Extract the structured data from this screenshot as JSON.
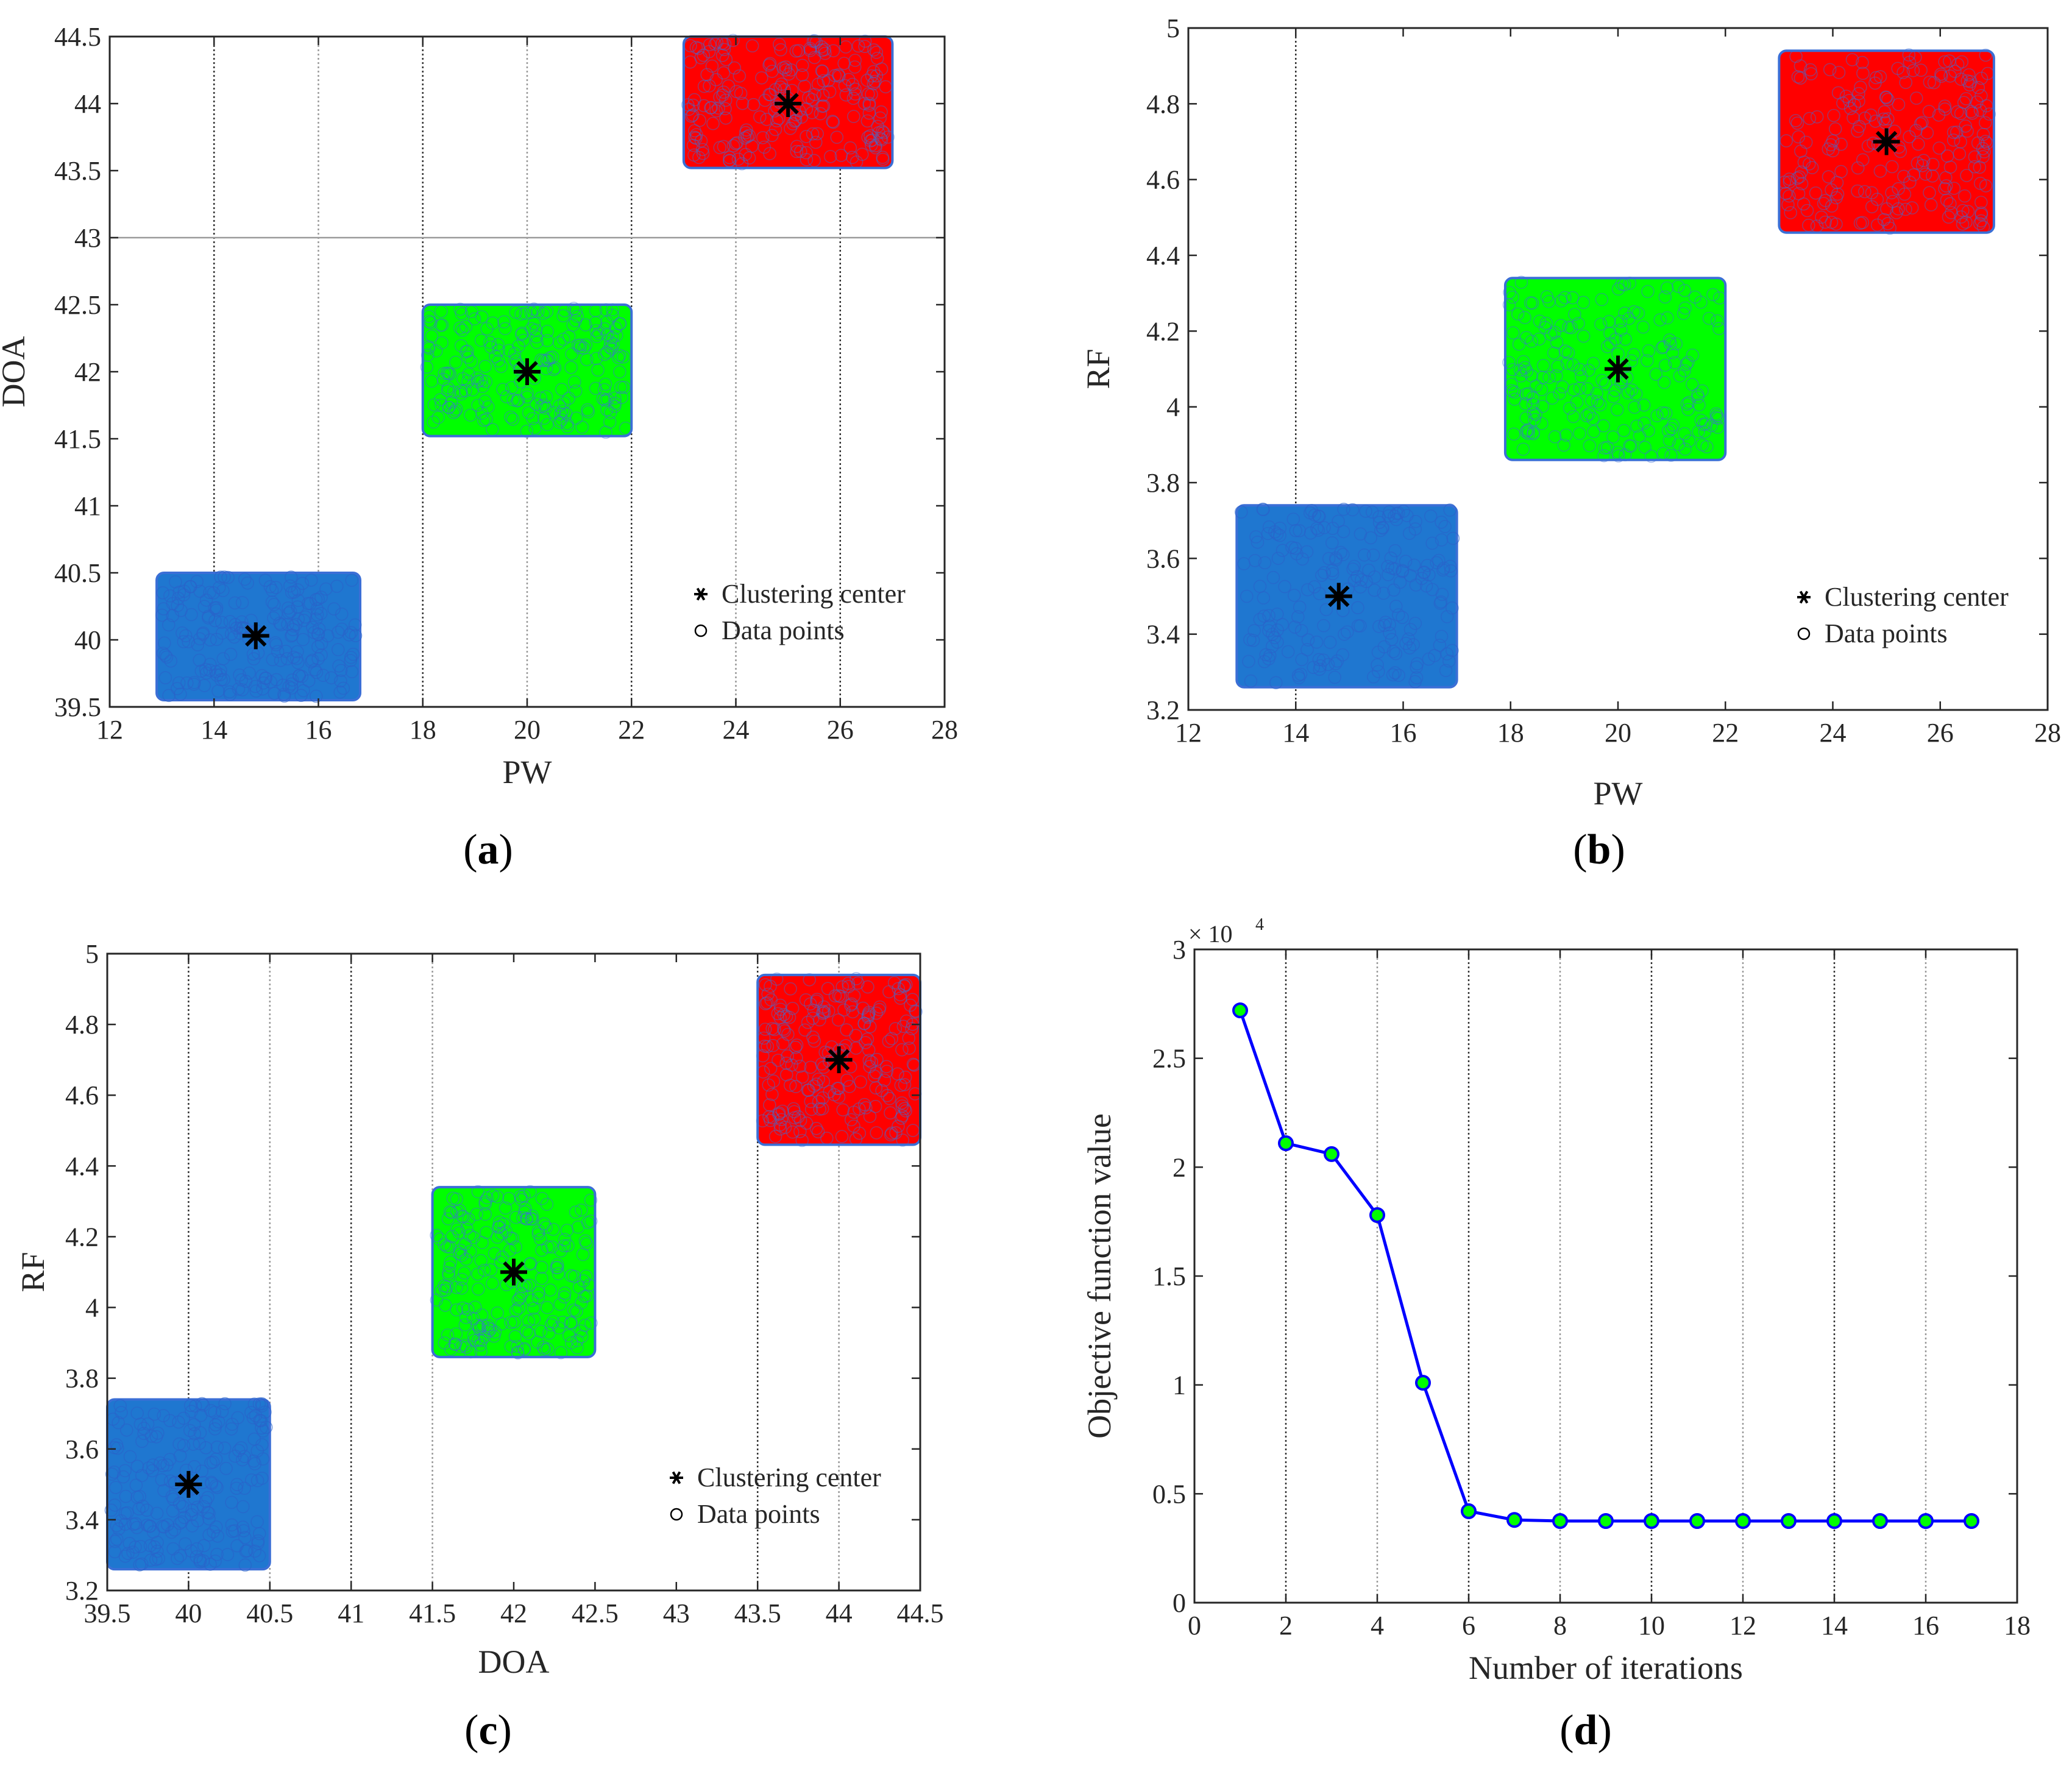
{
  "colors": {
    "cluster_1": "#1f77d0",
    "cluster_2": "#00ff00",
    "cluster_3": "#ff0000",
    "cluster_edge": "#3b6fd6",
    "center": "#000000",
    "line": "#0000ff",
    "marker_fill": "#00ff00",
    "axis": "#262626"
  },
  "panel_labels": [
    "a",
    "b",
    "c",
    "d"
  ],
  "legend": {
    "center_label": "Clustering center",
    "points_label": "Data points"
  },
  "chart_data": [
    {
      "id": "a",
      "type": "scatter",
      "xlabel": "PW",
      "ylabel": "DOA",
      "xlim": [
        12,
        28
      ],
      "ylim": [
        39.5,
        44.5
      ],
      "xticks": [
        "12",
        "14",
        "16",
        "18",
        "20",
        "22",
        "24",
        "26",
        "28"
      ],
      "yticks": [
        "39.5",
        "40",
        "40.5",
        "41",
        "41.5",
        "42",
        "42.5",
        "43",
        "43.5",
        "44",
        "44.5"
      ],
      "vgrid_x": [
        14,
        16,
        18,
        20,
        22,
        24,
        26
      ],
      "hgrid_y": [
        43
      ],
      "clusters": [
        {
          "x_range": [
            12.9,
            16.8
          ],
          "y_range": [
            39.55,
            40.5
          ],
          "center": [
            14.8,
            40.03
          ]
        },
        {
          "x_range": [
            18.0,
            22.0
          ],
          "y_range": [
            41.52,
            42.5
          ],
          "center": [
            20.0,
            42.0
          ]
        },
        {
          "x_range": [
            23.0,
            27.0
          ],
          "y_range": [
            43.52,
            44.5
          ],
          "center": [
            25.0,
            44.0
          ]
        }
      ],
      "legend_position": "lower-right"
    },
    {
      "id": "b",
      "type": "scatter",
      "xlabel": "PW",
      "ylabel": "RF",
      "xlim": [
        12,
        28
      ],
      "ylim": [
        3.2,
        5.0
      ],
      "xticks": [
        "12",
        "14",
        "16",
        "18",
        "20",
        "22",
        "24",
        "26",
        "28"
      ],
      "yticks": [
        "3.2",
        "3.4",
        "3.6",
        "3.8",
        "4",
        "4.2",
        "4.4",
        "4.6",
        "4.8",
        "5"
      ],
      "vgrid_x": [
        14
      ],
      "hgrid_y": [],
      "clusters": [
        {
          "x_range": [
            12.9,
            17.0
          ],
          "y_range": [
            3.26,
            3.74
          ],
          "center": [
            14.8,
            3.5
          ]
        },
        {
          "x_range": [
            17.9,
            22.0
          ],
          "y_range": [
            3.86,
            4.34
          ],
          "center": [
            20.0,
            4.1
          ]
        },
        {
          "x_range": [
            23.0,
            27.0
          ],
          "y_range": [
            4.46,
            4.94
          ],
          "center": [
            25.0,
            4.7
          ]
        }
      ],
      "legend_position": "lower-right"
    },
    {
      "id": "c",
      "type": "scatter",
      "xlabel": "DOA",
      "ylabel": "RF",
      "xlim": [
        39.5,
        44.5
      ],
      "ylim": [
        3.2,
        5.0
      ],
      "xticks": [
        "39.5",
        "40",
        "40.5",
        "41",
        "41.5",
        "42",
        "42.5",
        "43",
        "43.5",
        "44",
        "44.5"
      ],
      "yticks": [
        "3.2",
        "3.4",
        "3.6",
        "3.8",
        "4",
        "4.2",
        "4.4",
        "4.6",
        "4.8",
        "5"
      ],
      "vgrid_x": [
        40,
        40.5,
        41,
        41.5,
        43.5,
        44
      ],
      "hgrid_y": [],
      "clusters": [
        {
          "x_range": [
            39.5,
            40.5
          ],
          "y_range": [
            3.26,
            3.74
          ],
          "center": [
            40.0,
            3.5
          ]
        },
        {
          "x_range": [
            41.5,
            42.5
          ],
          "y_range": [
            3.86,
            4.34
          ],
          "center": [
            42.0,
            4.1
          ]
        },
        {
          "x_range": [
            43.5,
            44.5
          ],
          "y_range": [
            4.46,
            4.94
          ],
          "center": [
            44.0,
            4.7
          ]
        }
      ],
      "legend_position": "lower-right"
    },
    {
      "id": "d",
      "type": "line",
      "xlabel": "Number of iterations",
      "ylabel": "Objective function value",
      "exponent_label": "× 10",
      "exponent_power": "4",
      "xlim": [
        0,
        18
      ],
      "ylim": [
        0,
        3
      ],
      "xticks": [
        "0",
        "2",
        "4",
        "6",
        "8",
        "10",
        "12",
        "14",
        "16",
        "18"
      ],
      "yticks": [
        "0",
        "0.5",
        "1",
        "1.5",
        "2",
        "2.5",
        "3"
      ],
      "vgrid_x": [
        2,
        4,
        6,
        8,
        10,
        12,
        14,
        16
      ],
      "hgrid_y": [],
      "x": [
        1,
        2,
        3,
        4,
        5,
        6,
        7,
        8,
        9,
        10,
        11,
        12,
        13,
        14,
        15,
        16,
        17
      ],
      "y": [
        2.72,
        2.11,
        2.06,
        1.78,
        1.01,
        0.42,
        0.38,
        0.375,
        0.375,
        0.375,
        0.375,
        0.375,
        0.375,
        0.375,
        0.375,
        0.375,
        0.375
      ]
    }
  ]
}
